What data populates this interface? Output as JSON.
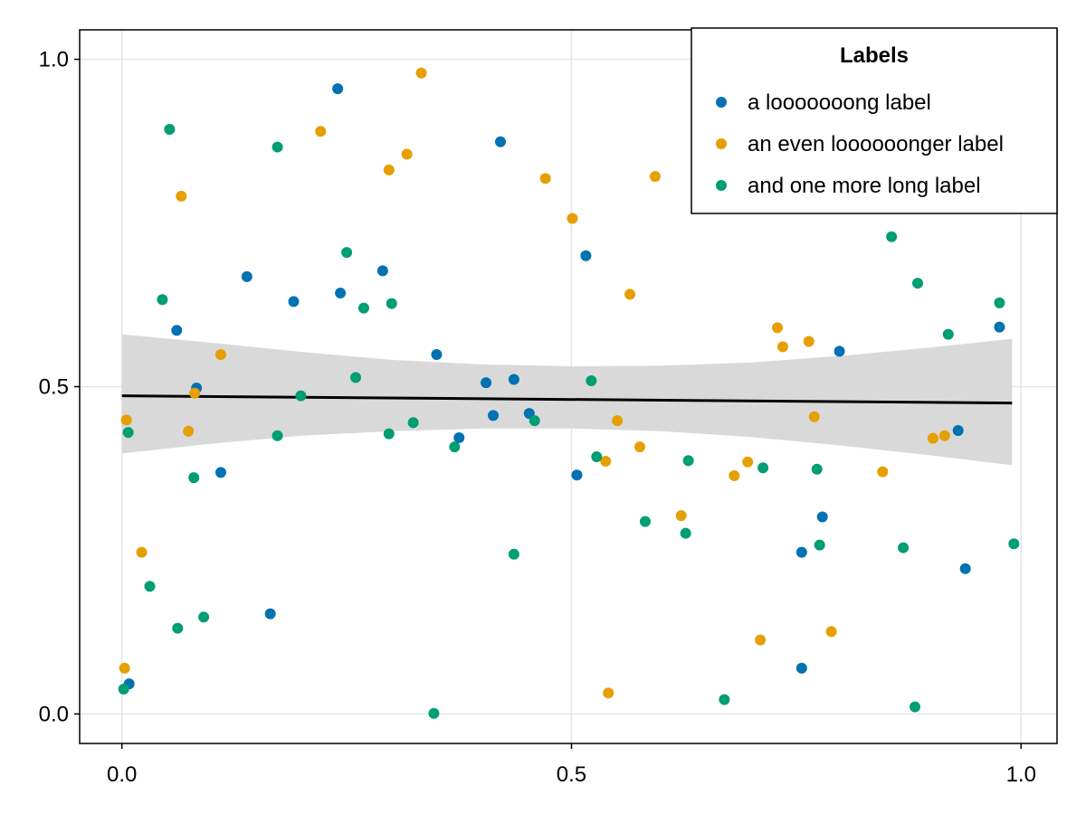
{
  "chart_data": {
    "type": "scatter",
    "xlim": [
      -0.047,
      1.04
    ],
    "ylim": [
      -0.045,
      1.045
    ],
    "x_ticks": [
      0.0,
      0.5,
      1.0
    ],
    "y_ticks": [
      0.0,
      0.5,
      1.0
    ],
    "x_tick_labels": [
      "0.0",
      "0.5",
      "1.0"
    ],
    "y_tick_labels": [
      "0.0",
      "0.5",
      "1.0"
    ],
    "grid": true,
    "legend": {
      "title": "Labels",
      "placement": "top-right",
      "entries": [
        "a looooooong label",
        "an even loooooonger label",
        "and one more long label"
      ]
    },
    "series": [
      {
        "name": "a looooooong label",
        "color": "#0072b2",
        "points": [
          [
            0.008,
            0.046
          ],
          [
            0.061,
            0.586
          ],
          [
            0.083,
            0.498
          ],
          [
            0.11,
            0.369
          ],
          [
            0.139,
            0.668
          ],
          [
            0.165,
            0.153
          ],
          [
            0.191,
            0.63
          ],
          [
            0.24,
            0.955
          ],
          [
            0.243,
            0.643
          ],
          [
            0.29,
            0.677
          ],
          [
            0.35,
            0.549
          ],
          [
            0.375,
            0.422
          ],
          [
            0.405,
            0.506
          ],
          [
            0.413,
            0.456
          ],
          [
            0.421,
            0.874
          ],
          [
            0.436,
            0.511
          ],
          [
            0.453,
            0.459
          ],
          [
            0.506,
            0.365
          ],
          [
            0.516,
            0.7
          ],
          [
            0.756,
            0.247
          ],
          [
            0.756,
            0.07
          ],
          [
            0.779,
            0.301
          ],
          [
            0.798,
            0.554
          ],
          [
            0.93,
            0.433
          ],
          [
            0.938,
            0.222
          ],
          [
            0.976,
            0.591
          ]
        ]
      },
      {
        "name": "an even loooooonger label",
        "color": "#e69f00",
        "points": [
          [
            0.003,
            0.07
          ],
          [
            0.005,
            0.449
          ],
          [
            0.022,
            0.247
          ],
          [
            0.066,
            0.791
          ],
          [
            0.074,
            0.432
          ],
          [
            0.081,
            0.49
          ],
          [
            0.11,
            0.549
          ],
          [
            0.221,
            0.89
          ],
          [
            0.297,
            0.831
          ],
          [
            0.317,
            0.855
          ],
          [
            0.333,
            0.979
          ],
          [
            0.471,
            0.818
          ],
          [
            0.501,
            0.757
          ],
          [
            0.538,
            0.386
          ],
          [
            0.541,
            0.032
          ],
          [
            0.551,
            0.448
          ],
          [
            0.565,
            0.641
          ],
          [
            0.576,
            0.408
          ],
          [
            0.593,
            0.821
          ],
          [
            0.622,
            0.303
          ],
          [
            0.681,
            0.364
          ],
          [
            0.696,
            0.385
          ],
          [
            0.71,
            0.113
          ],
          [
            0.729,
            0.59
          ],
          [
            0.735,
            0.561
          ],
          [
            0.764,
            0.569
          ],
          [
            0.77,
            0.454
          ],
          [
            0.789,
            0.126
          ],
          [
            0.846,
            0.37
          ],
          [
            0.902,
            0.421
          ],
          [
            0.915,
            0.425
          ]
        ]
      },
      {
        "name": "and one more long label",
        "color": "#009e73",
        "points": [
          [
            0.002,
            0.038
          ],
          [
            0.007,
            0.43
          ],
          [
            0.031,
            0.195
          ],
          [
            0.045,
            0.633
          ],
          [
            0.053,
            0.893
          ],
          [
            0.062,
            0.131
          ],
          [
            0.08,
            0.361
          ],
          [
            0.091,
            0.148
          ],
          [
            0.173,
            0.866
          ],
          [
            0.173,
            0.425
          ],
          [
            0.199,
            0.486
          ],
          [
            0.25,
            0.705
          ],
          [
            0.26,
            0.514
          ],
          [
            0.269,
            0.62
          ],
          [
            0.297,
            0.428
          ],
          [
            0.3,
            0.627
          ],
          [
            0.324,
            0.445
          ],
          [
            0.347,
            0.001
          ],
          [
            0.37,
            0.408
          ],
          [
            0.436,
            0.244
          ],
          [
            0.459,
            0.448
          ],
          [
            0.522,
            0.509
          ],
          [
            0.528,
            0.393
          ],
          [
            0.582,
            0.294
          ],
          [
            0.627,
            0.276
          ],
          [
            0.63,
            0.387
          ],
          [
            0.67,
            0.022
          ],
          [
            0.713,
            0.376
          ],
          [
            0.773,
            0.374
          ],
          [
            0.776,
            0.258
          ],
          [
            0.856,
            0.729
          ],
          [
            0.869,
            0.254
          ],
          [
            0.882,
            0.011
          ],
          [
            0.885,
            0.658
          ],
          [
            0.919,
            0.58
          ],
          [
            0.976,
            0.628
          ],
          [
            0.992,
            0.26
          ]
        ]
      }
    ],
    "regression": {
      "start": [
        0.0,
        0.486
      ],
      "end": [
        0.99,
        0.475
      ],
      "band": [
        [
          0.0,
          0.58,
          0.398
        ],
        [
          0.1,
          0.567,
          0.413
        ],
        [
          0.2,
          0.553,
          0.425
        ],
        [
          0.3,
          0.541,
          0.432
        ],
        [
          0.4,
          0.534,
          0.436
        ],
        [
          0.5,
          0.531,
          0.436
        ],
        [
          0.6,
          0.532,
          0.432
        ],
        [
          0.7,
          0.537,
          0.423
        ],
        [
          0.8,
          0.547,
          0.41
        ],
        [
          0.9,
          0.56,
          0.395
        ],
        [
          0.99,
          0.573,
          0.38
        ]
      ],
      "line_color": "#000000",
      "band_color": "#d9d9d9"
    }
  }
}
